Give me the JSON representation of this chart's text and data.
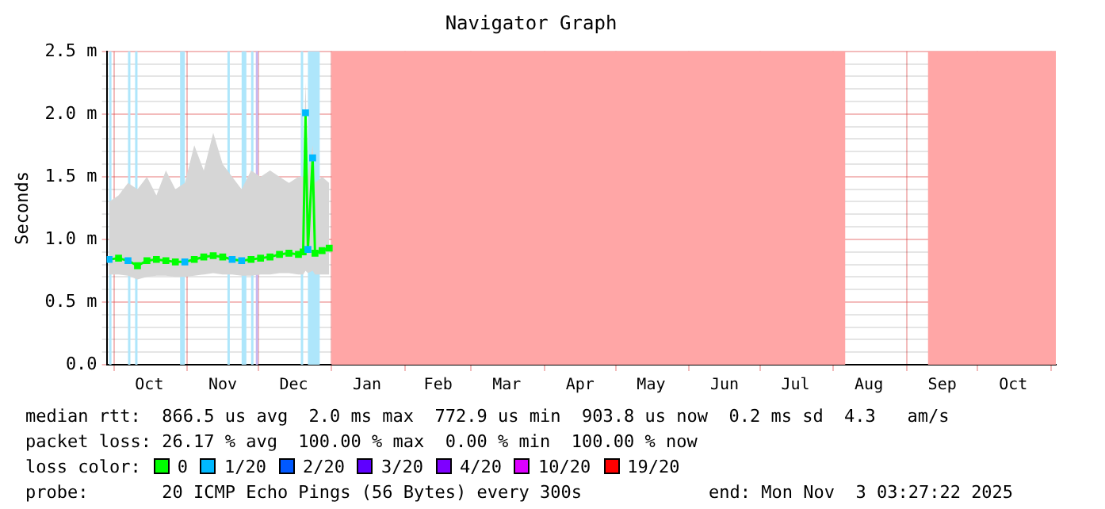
{
  "chart_data": {
    "type": "line",
    "title": "Navigator Graph",
    "ylabel": "Seconds",
    "xlim": [
      "2024-09-28",
      "2025-11-03"
    ],
    "xticks": [
      {
        "value": "2024-10-01",
        "label": null
      },
      {
        "value": "2024-10-16",
        "label": "Oct"
      },
      {
        "value": "2024-11-01",
        "label": null
      },
      {
        "value": "2024-11-16",
        "label": "Nov"
      },
      {
        "value": "2024-12-01",
        "label": null
      },
      {
        "value": "2024-12-16",
        "label": "Dec"
      },
      {
        "value": "2025-01-01",
        "label": null
      },
      {
        "value": "2025-01-16",
        "label": "Jan"
      },
      {
        "value": "2025-02-01",
        "label": null
      },
      {
        "value": "2025-02-15",
        "label": "Feb"
      },
      {
        "value": "2025-03-01",
        "label": null
      },
      {
        "value": "2025-03-16",
        "label": "Mar"
      },
      {
        "value": "2025-04-01",
        "label": null
      },
      {
        "value": "2025-04-16",
        "label": "Apr"
      },
      {
        "value": "2025-05-01",
        "label": null
      },
      {
        "value": "2025-05-16",
        "label": "May"
      },
      {
        "value": "2025-06-01",
        "label": null
      },
      {
        "value": "2025-06-16",
        "label": "Jun"
      },
      {
        "value": "2025-07-01",
        "label": null
      },
      {
        "value": "2025-07-16",
        "label": "Jul"
      },
      {
        "value": "2025-08-01",
        "label": null
      },
      {
        "value": "2025-08-16",
        "label": "Aug"
      },
      {
        "value": "2025-09-01",
        "label": null
      },
      {
        "value": "2025-09-16",
        "label": "Sep"
      },
      {
        "value": "2025-10-01",
        "label": null
      },
      {
        "value": "2025-10-16",
        "label": "Oct"
      },
      {
        "value": "2025-11-01",
        "label": null
      }
    ],
    "ylim": [
      0,
      2.5
    ],
    "yticks": [
      {
        "value": 0,
        "label": "0.0"
      },
      {
        "value": 0.1,
        "label": null
      },
      {
        "value": 0.2,
        "label": null
      },
      {
        "value": 0.3,
        "label": null
      },
      {
        "value": 0.4,
        "label": null
      },
      {
        "value": 0.5,
        "label": "0.5 m"
      },
      {
        "value": 0.6,
        "label": null
      },
      {
        "value": 0.7,
        "label": null
      },
      {
        "value": 0.8,
        "label": null
      },
      {
        "value": 0.9,
        "label": null
      },
      {
        "value": 1.0,
        "label": "1.0 m"
      },
      {
        "value": 1.1,
        "label": null
      },
      {
        "value": 1.2,
        "label": null
      },
      {
        "value": 1.3,
        "label": null
      },
      {
        "value": 1.4,
        "label": null
      },
      {
        "value": 1.5,
        "label": "1.5 m"
      },
      {
        "value": 1.6,
        "label": null
      },
      {
        "value": 1.7,
        "label": null
      },
      {
        "value": 1.8,
        "label": null
      },
      {
        "value": 1.9,
        "label": null
      },
      {
        "value": 2.0,
        "label": "2.0 m"
      },
      {
        "value": 2.1,
        "label": null
      },
      {
        "value": 2.2,
        "label": null
      },
      {
        "value": 2.3,
        "label": null
      },
      {
        "value": 2.4,
        "label": null
      },
      {
        "value": 2.5,
        "label": "2.5 m"
      }
    ],
    "grid": true,
    "marker": "square",
    "line_style": "solid",
    "series": [
      {
        "x": [
          "2024-09-29",
          "2024-10-03",
          "2024-10-07",
          "2024-10-11",
          "2024-10-15",
          "2024-10-19",
          "2024-10-23",
          "2024-10-27",
          "2024-10-31",
          "2024-11-04",
          "2024-11-08",
          "2024-11-12",
          "2024-11-16",
          "2024-11-20",
          "2024-11-24",
          "2024-11-28",
          "2024-12-02",
          "2024-12-06",
          "2024-12-10",
          "2024-12-14",
          "2024-12-18",
          "2024-12-20",
          "2024-12-21",
          "2024-12-22",
          "2024-12-24",
          "2024-12-25",
          "2024-12-28",
          "2024-12-31"
        ],
        "color": "#00ff00",
        "colors": [
          "#00b8ff",
          "#00ff00",
          "#00b8ff",
          "#00ff00",
          "#00ff00",
          "#00ff00",
          "#00ff00",
          "#00ff00",
          "#00b8ff",
          "#00ff00",
          "#00ff00",
          "#00ff00",
          "#00ff00",
          "#00b8ff",
          "#00b8ff",
          "#00ff00",
          "#00ff00",
          "#00ff00",
          "#00ff00",
          "#00ff00",
          "#00ff00",
          "#00ff00",
          "#00b8ff",
          "#00b8ff",
          "#00b8ff",
          "#00ff00",
          "#00ff00",
          "#00ff00"
        ],
        "values": [
          0.84,
          0.85,
          0.83,
          0.79,
          0.83,
          0.84,
          0.83,
          0.82,
          0.82,
          0.84,
          0.86,
          0.87,
          0.86,
          0.84,
          0.83,
          0.84,
          0.85,
          0.86,
          0.88,
          0.89,
          0.88,
          0.9,
          2.01,
          0.92,
          1.65,
          0.89,
          0.91,
          0.93
        ],
        "lower": [
          0.72,
          0.72,
          0.71,
          0.68,
          0.7,
          0.71,
          0.71,
          0.7,
          0.7,
          0.71,
          0.72,
          0.73,
          0.72,
          0.72,
          0.71,
          0.71,
          0.72,
          0.72,
          0.73,
          0.73,
          0.72,
          0.72,
          0.75,
          0.73,
          0.75,
          0.72,
          0.72,
          0.72
        ],
        "upper": [
          1.3,
          1.35,
          1.45,
          1.4,
          1.5,
          1.35,
          1.55,
          1.4,
          1.45,
          1.75,
          1.55,
          1.85,
          1.6,
          1.5,
          1.4,
          1.55,
          1.5,
          1.55,
          1.5,
          1.45,
          1.5,
          1.5,
          2.25,
          1.5,
          1.75,
          1.45,
          1.5,
          1.45
        ]
      }
    ],
    "bands": [
      {
        "axis": "x",
        "from": "2024-09-29",
        "to": "2024-09-30",
        "color": "#aee6fb"
      },
      {
        "axis": "x",
        "from": "2024-10-07",
        "to": "2024-10-08",
        "color": "#aee6fb"
      },
      {
        "axis": "x",
        "from": "2024-10-10",
        "to": "2024-10-11",
        "color": "#aee6fb"
      },
      {
        "axis": "x",
        "from": "2024-10-29",
        "to": "2024-10-31",
        "color": "#aee6fb"
      },
      {
        "axis": "x",
        "from": "2024-11-18",
        "to": "2024-11-19",
        "color": "#aee6fb"
      },
      {
        "axis": "x",
        "from": "2024-11-24",
        "to": "2024-11-26",
        "color": "#aee6fb"
      },
      {
        "axis": "x",
        "from": "2024-11-28",
        "to": "2024-11-29",
        "color": "#aee6fb"
      },
      {
        "axis": "x",
        "from": "2024-11-30",
        "to": "2024-12-01",
        "color": "#c8b8f0"
      },
      {
        "axis": "x",
        "from": "2024-12-19",
        "to": "2024-12-20",
        "color": "#aee6fb"
      },
      {
        "axis": "x",
        "from": "2024-12-22",
        "to": "2024-12-27",
        "color": "#aee6fb"
      },
      {
        "axis": "x",
        "from": "2025-01-01",
        "to": "2025-08-06",
        "color": "#ffa6a6"
      },
      {
        "axis": "x",
        "from": "2025-09-10",
        "to": "2025-11-03",
        "color": "#ffa6a6"
      }
    ],
    "annotations": [
      "median rtt:  866.5 us avg  2.0 ms max  772.9 us min  903.8 us now  0.2 ms sd  4.3   am/s",
      "packet loss: 26.17 % avg  100.00 % max  0.00 % min  100.00 % now",
      "loss color:",
      "0",
      "1/20",
      "2/20",
      "3/20",
      "4/20",
      "10/20",
      "19/20",
      "probe:       20 ICMP Echo Pings (56 Bytes) every 300s",
      "end: Mon Nov  3 03:27:22 2025"
    ]
  }
}
